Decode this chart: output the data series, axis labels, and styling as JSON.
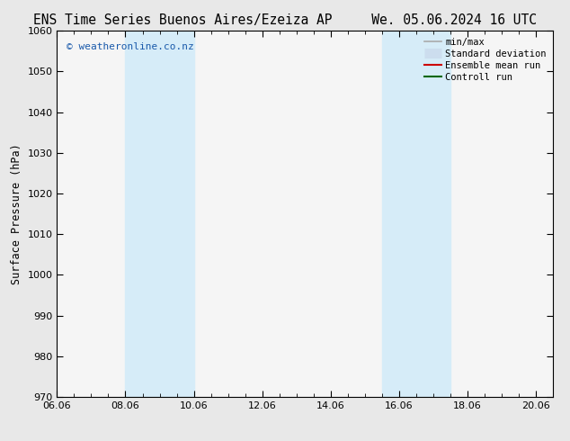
{
  "title_left": "ENS Time Series Buenos Aires/Ezeiza AP",
  "title_right": "We. 05.06.2024 16 UTC",
  "ylabel": "Surface Pressure (hPa)",
  "ylim": [
    970,
    1060
  ],
  "yticks": [
    970,
    980,
    990,
    1000,
    1010,
    1020,
    1030,
    1040,
    1050,
    1060
  ],
  "xlim_min": 0.0,
  "xlim_max": 14.5,
  "xtick_labels": [
    "06.06",
    "08.06",
    "10.06",
    "12.06",
    "14.06",
    "16.06",
    "18.06",
    "20.06"
  ],
  "xtick_positions": [
    0,
    2,
    4,
    6,
    8,
    10,
    12,
    14
  ],
  "shaded_bands": [
    {
      "x_start": 2.0,
      "x_end": 4.0
    },
    {
      "x_start": 9.5,
      "x_end": 11.5
    }
  ],
  "shade_color": "#d6ecf8",
  "background_color": "#e8e8e8",
  "plot_bg_color": "#f5f5f5",
  "watermark": "© weatheronline.co.nz",
  "watermark_color": "#1a5aab",
  "legend_entries": [
    {
      "label": "min/max",
      "color": "#aaaaaa",
      "lw": 1.2
    },
    {
      "label": "Standard deviation",
      "color": "#ccddee",
      "lw": 8
    },
    {
      "label": "Ensemble mean run",
      "color": "#cc0000",
      "lw": 1.5
    },
    {
      "label": "Controll run",
      "color": "#006600",
      "lw": 1.5
    }
  ],
  "title_fontsize": 10.5,
  "axis_label_fontsize": 8.5,
  "tick_fontsize": 8,
  "legend_fontsize": 7.5
}
